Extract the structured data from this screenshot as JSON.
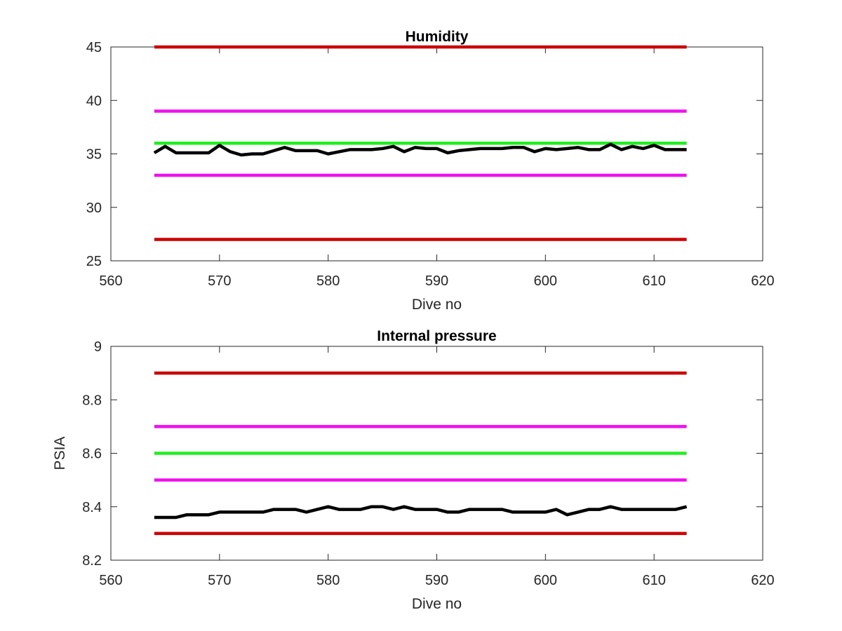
{
  "chart_data": [
    {
      "type": "line",
      "title": "Humidity",
      "xlabel": "Dive no",
      "ylabel": "",
      "xlim": [
        560,
        620
      ],
      "ylim": [
        25,
        45
      ],
      "xticks": [
        "560",
        "570",
        "580",
        "590",
        "600",
        "610",
        "620"
      ],
      "yticks": [
        "25",
        "30",
        "35",
        "40",
        "45"
      ],
      "grid": false,
      "legend": "none",
      "series": [
        {
          "color": "#cc0000",
          "x": [
            564,
            613
          ],
          "y": [
            45,
            45
          ]
        },
        {
          "color": "#ee11ee",
          "x": [
            564,
            613
          ],
          "y": [
            39,
            39
          ]
        },
        {
          "color": "#22ee22",
          "x": [
            564,
            613
          ],
          "y": [
            36,
            36
          ]
        },
        {
          "color": "#ee11ee",
          "x": [
            564,
            613
          ],
          "y": [
            33,
            33
          ]
        },
        {
          "color": "#cc0000",
          "x": [
            564,
            613
          ],
          "y": [
            27,
            27
          ]
        },
        {
          "color": "#000000",
          "x": [
            564,
            565,
            566,
            567,
            568,
            569,
            570,
            571,
            572,
            573,
            574,
            575,
            576,
            577,
            578,
            579,
            580,
            581,
            582,
            583,
            584,
            585,
            586,
            587,
            588,
            589,
            590,
            591,
            592,
            593,
            594,
            595,
            596,
            597,
            598,
            599,
            600,
            601,
            602,
            603,
            604,
            605,
            606,
            607,
            608,
            609,
            610,
            611,
            612,
            613
          ],
          "y": [
            35.1,
            35.7,
            35.1,
            35.1,
            35.1,
            35.1,
            35.8,
            35.2,
            34.9,
            35.0,
            35.0,
            35.3,
            35.6,
            35.3,
            35.3,
            35.3,
            35.0,
            35.2,
            35.4,
            35.4,
            35.4,
            35.5,
            35.7,
            35.2,
            35.6,
            35.5,
            35.5,
            35.1,
            35.3,
            35.4,
            35.5,
            35.5,
            35.5,
            35.6,
            35.6,
            35.2,
            35.5,
            35.4,
            35.5,
            35.6,
            35.4,
            35.4,
            35.9,
            35.4,
            35.7,
            35.5,
            35.8,
            35.4,
            35.4,
            35.4
          ]
        }
      ]
    },
    {
      "type": "line",
      "title": "Internal pressure",
      "xlabel": "Dive no",
      "ylabel": "PSIA",
      "xlim": [
        560,
        620
      ],
      "ylim": [
        8.2,
        9
      ],
      "xticks": [
        "560",
        "570",
        "580",
        "590",
        "600",
        "610",
        "620"
      ],
      "yticks": [
        "8.2",
        "8.4",
        "8.6",
        "8.8",
        "9"
      ],
      "grid": false,
      "legend": "none",
      "series": [
        {
          "color": "#cc0000",
          "x": [
            564,
            613
          ],
          "y": [
            8.9,
            8.9
          ]
        },
        {
          "color": "#ee11ee",
          "x": [
            564,
            613
          ],
          "y": [
            8.7,
            8.7
          ]
        },
        {
          "color": "#22ee22",
          "x": [
            564,
            613
          ],
          "y": [
            8.6,
            8.6
          ]
        },
        {
          "color": "#ee11ee",
          "x": [
            564,
            613
          ],
          "y": [
            8.5,
            8.5
          ]
        },
        {
          "color": "#cc0000",
          "x": [
            564,
            613
          ],
          "y": [
            8.3,
            8.3
          ]
        },
        {
          "color": "#000000",
          "x": [
            564,
            565,
            566,
            567,
            568,
            569,
            570,
            571,
            572,
            573,
            574,
            575,
            576,
            577,
            578,
            579,
            580,
            581,
            582,
            583,
            584,
            585,
            586,
            587,
            588,
            589,
            590,
            591,
            592,
            593,
            594,
            595,
            596,
            597,
            598,
            599,
            600,
            601,
            602,
            603,
            604,
            605,
            606,
            607,
            608,
            609,
            610,
            611,
            612,
            613
          ],
          "y": [
            8.36,
            8.36,
            8.36,
            8.37,
            8.37,
            8.37,
            8.38,
            8.38,
            8.38,
            8.38,
            8.38,
            8.39,
            8.39,
            8.39,
            8.38,
            8.39,
            8.4,
            8.39,
            8.39,
            8.39,
            8.4,
            8.4,
            8.39,
            8.4,
            8.39,
            8.39,
            8.39,
            8.38,
            8.38,
            8.39,
            8.39,
            8.39,
            8.39,
            8.38,
            8.38,
            8.38,
            8.38,
            8.39,
            8.37,
            8.38,
            8.39,
            8.39,
            8.4,
            8.39,
            8.39,
            8.39,
            8.39,
            8.39,
            8.39,
            8.4
          ]
        }
      ]
    }
  ]
}
